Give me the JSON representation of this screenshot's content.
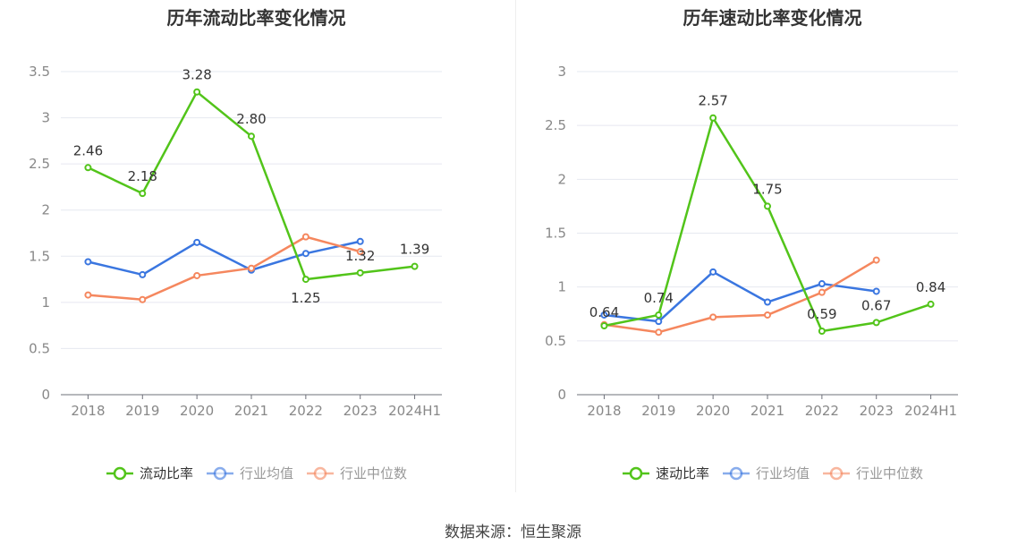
{
  "source": "数据来源：恒生聚源",
  "chart_data": [
    {
      "type": "line",
      "title": "历年流动比率变化情况",
      "categories": [
        "2018",
        "2019",
        "2020",
        "2021",
        "2022",
        "2023",
        "2024H1"
      ],
      "ylim": [
        0,
        3.5
      ],
      "yticks": [
        "0",
        "0.5",
        "1",
        "1.5",
        "2",
        "2.5",
        "3",
        "3.5"
      ],
      "grid": true,
      "legend_position": "bottom",
      "series": [
        {
          "name": "流动比率",
          "color": "#52c41a",
          "values": [
            2.46,
            2.18,
            3.28,
            2.8,
            1.25,
            1.32,
            1.39
          ],
          "labels": [
            "2.46",
            "2.18",
            "3.28",
            "2.80",
            "1.25",
            "1.32",
            "1.39"
          ]
        },
        {
          "name": "行业均值",
          "color": "#3a76e0",
          "values": [
            1.44,
            1.3,
            1.65,
            1.35,
            1.53,
            1.66,
            null
          ]
        },
        {
          "name": "行业中位数",
          "color": "#f5875e",
          "values": [
            1.08,
            1.03,
            1.29,
            1.37,
            1.71,
            1.55,
            null
          ]
        }
      ]
    },
    {
      "type": "line",
      "title": "历年速动比率变化情况",
      "categories": [
        "2018",
        "2019",
        "2020",
        "2021",
        "2022",
        "2023",
        "2024H1"
      ],
      "ylim": [
        0,
        3
      ],
      "yticks": [
        "0",
        "0.5",
        "1",
        "1.5",
        "2",
        "2.5",
        "3"
      ],
      "grid": true,
      "legend_position": "bottom",
      "series": [
        {
          "name": "速动比率",
          "color": "#52c41a",
          "values": [
            0.64,
            0.74,
            2.57,
            1.75,
            0.59,
            0.67,
            0.84
          ],
          "labels": [
            "0.64",
            "0.74",
            "2.57",
            "1.75",
            "0.59",
            "0.67",
            "0.84"
          ]
        },
        {
          "name": "行业均值",
          "color": "#3a76e0",
          "values": [
            0.74,
            0.68,
            1.14,
            0.86,
            1.03,
            0.96,
            null
          ]
        },
        {
          "name": "行业中位数",
          "color": "#f5875e",
          "values": [
            0.65,
            0.58,
            0.72,
            0.74,
            0.95,
            1.25,
            null
          ]
        }
      ]
    }
  ]
}
